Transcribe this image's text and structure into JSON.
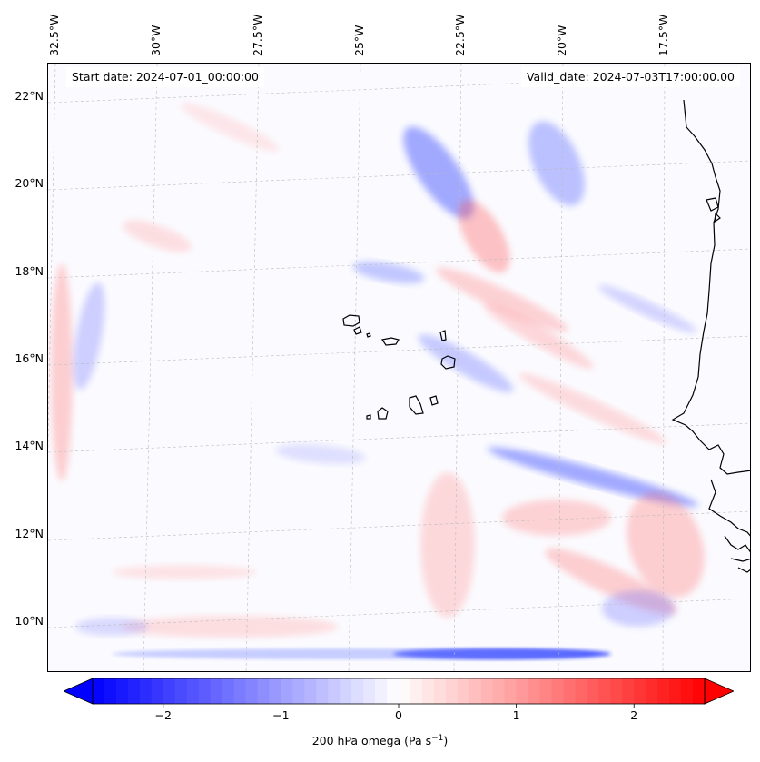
{
  "map": {
    "variable": "200 hPa omega",
    "units_sup": "−1",
    "start_date_label": "Start date: 2024-07-01_00:00:00",
    "valid_date_label": "Valid_date: 2024-07-03T17:00:00.00",
    "lon_labels": [
      "32.5°W",
      "30°W",
      "27.5°W",
      "25°W",
      "22.5°W",
      "20°W",
      "17.5°W"
    ],
    "lat_labels": [
      "22°N",
      "20°N",
      "18°N",
      "16°N",
      "14°N",
      "12°N",
      "10°N"
    ],
    "extent": {
      "lon_min": -33.0,
      "lon_max": -15.5,
      "lat_min": 8.9,
      "lat_max": 22.8
    },
    "projection": "Lambert conformal",
    "gridlines": true,
    "coastlines": true,
    "colormap": "bwr",
    "colors": {
      "negative": "#0000ff",
      "neutral": "#ffffff",
      "positive": "#ff0000"
    }
  },
  "colorbar": {
    "min": -2.6,
    "max": 2.6,
    "ticks": [
      -2,
      -1,
      0,
      1,
      2
    ],
    "tick_labels": [
      "−2",
      "−1",
      "0",
      "1",
      "2"
    ],
    "extend": "both",
    "orientation": "horizontal",
    "label_prefix": "200 hPa omega (Pa s",
    "label_suffix": ")"
  }
}
